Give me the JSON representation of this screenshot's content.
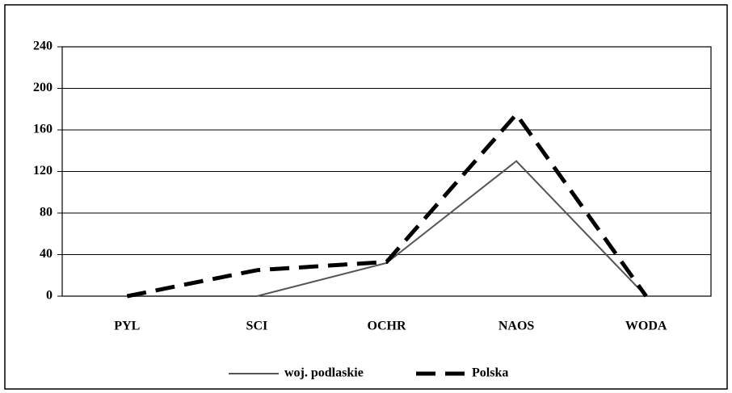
{
  "chart_data": {
    "type": "line",
    "categories": [
      "PYL",
      "SCI",
      "OCHR",
      "NAOS",
      "WODA"
    ],
    "series": [
      {
        "name": "woj. podlaskie",
        "color": "#555555",
        "style": "solid",
        "values": [
          0,
          0,
          32,
          130,
          0
        ]
      },
      {
        "name": "Polska",
        "color": "#000000",
        "style": "dashed",
        "values": [
          0,
          25,
          33,
          175,
          0
        ]
      }
    ],
    "ylim": [
      0,
      240
    ],
    "yticks": [
      0,
      40,
      80,
      120,
      160,
      200,
      240
    ],
    "grid": true,
    "legend": "bottom"
  }
}
